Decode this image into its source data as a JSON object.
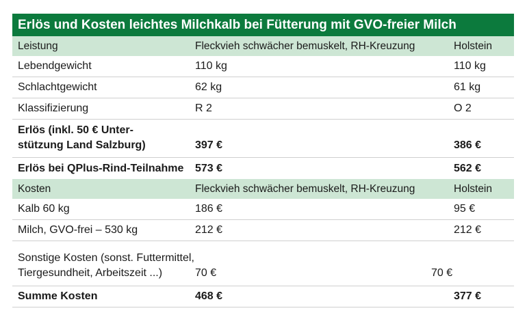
{
  "title": "Erlös und Kosten leichtes Milchkalb bei Fütterung mit GVO-freier Milch",
  "leistung_header": {
    "label": "Leistung",
    "col1": "Fleckvieh schwächer bemuskelt, RH-Kreuzung",
    "col2": "Holstein"
  },
  "leistung_rows": [
    {
      "label": "Lebendgewicht",
      "col1": "110 kg",
      "col2": "110 kg"
    },
    {
      "label": "Schlachtgewicht",
      "col1": "62 kg",
      "col2": "61 kg"
    },
    {
      "label": "Klassifizierung",
      "col1": "R 2",
      "col2": "O 2"
    }
  ],
  "erloes": {
    "label_line1": "Erlös (inkl. 50 € Unter-",
    "label_line2": "stützung Land Salzburg)",
    "col1": "397 €",
    "col2": "386 €"
  },
  "erloes_qplus": {
    "label": "Erlös bei QPlus-Rind-Teilnahme",
    "col1": "573 €",
    "col2": "562 €"
  },
  "kosten_header": {
    "label": "Kosten",
    "col1": "Fleckvieh schwächer bemuskelt, RH-Kreuzung",
    "col2": "Holstein"
  },
  "kosten_rows": [
    {
      "label": "Kalb 60 kg",
      "col1": "186 €",
      "col2": "95 €"
    },
    {
      "label": "Milch, GVO-frei – 530 kg",
      "col1": "212 €",
      "col2": "212 €"
    }
  ],
  "sonstige": {
    "label_line1": "Sonstige Kosten (sonst. Futtermittel,",
    "label_line2": "Tiergesundheit, Arbeitszeit ...)",
    "col1": "70 €",
    "col2": "70 €"
  },
  "summe": {
    "label": "Summe Kosten",
    "col1": "468 €",
    "col2": "377 €"
  },
  "colors": {
    "title_bg": "#0c7a3d",
    "header_bg": "#cde6d4",
    "rule": "#cfcfcf"
  }
}
